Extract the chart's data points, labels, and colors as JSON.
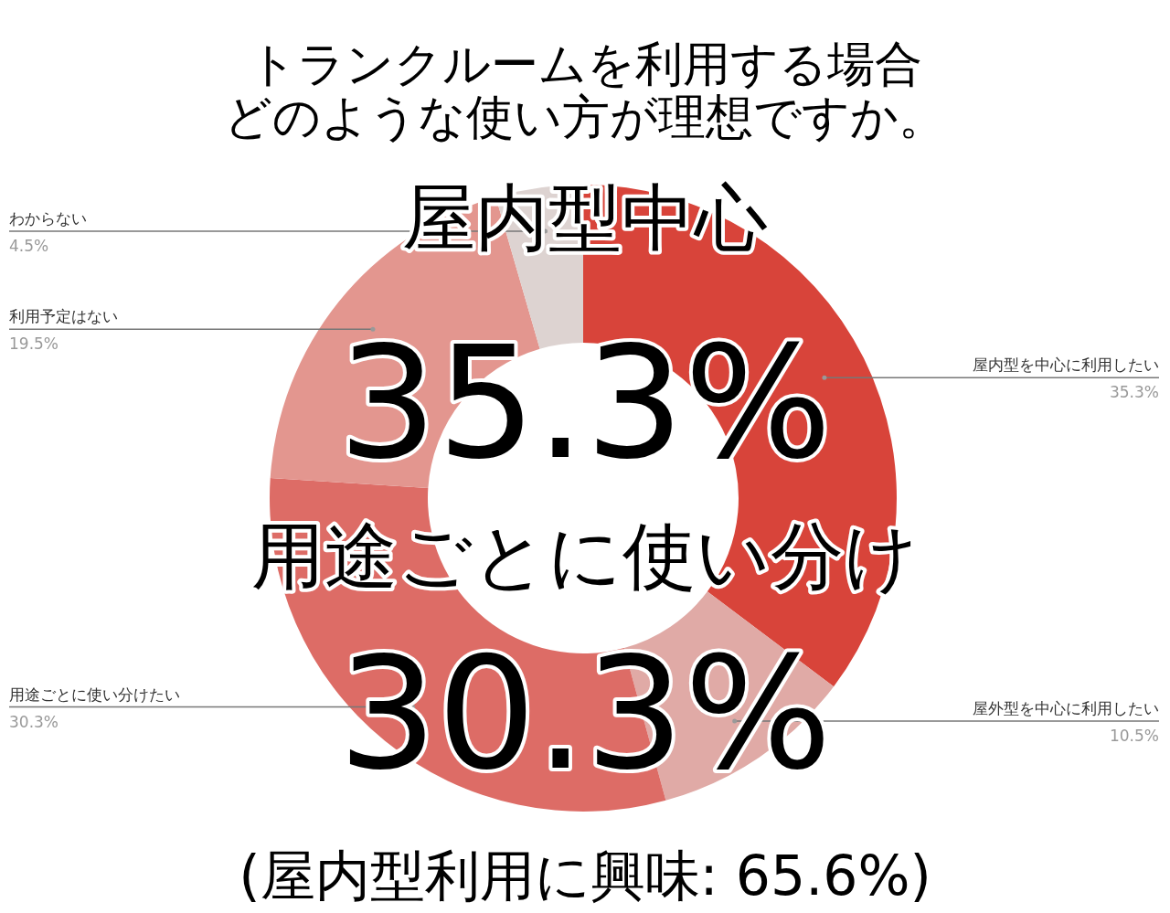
{
  "chart_data": {
    "type": "donut",
    "title": "トランクルームを利用する場合",
    "subtitle": "どのような使い方が理想ですか。",
    "categories": [
      "屋内型を中心に利用したい",
      "屋外型を中心に利用したい",
      "用途ごとに使い分けたい",
      "利用予定はない",
      "わからない"
    ],
    "values": [
      35.3,
      10.5,
      30.3,
      19.5,
      4.5
    ],
    "value_labels": [
      "35.3%",
      "10.5%",
      "30.3%",
      "19.5%",
      "4.5%"
    ],
    "colors": [
      "#d8443a",
      "#e0aaa6",
      "#dd6c66",
      "#e3968f",
      "#ddd3d1"
    ],
    "legend": false,
    "annotations": [
      "屋内型中心",
      "35.3%",
      "用途ごとに使い分け",
      "30.3%",
      "(屋内型利用に興味: 65.6%)"
    ]
  }
}
